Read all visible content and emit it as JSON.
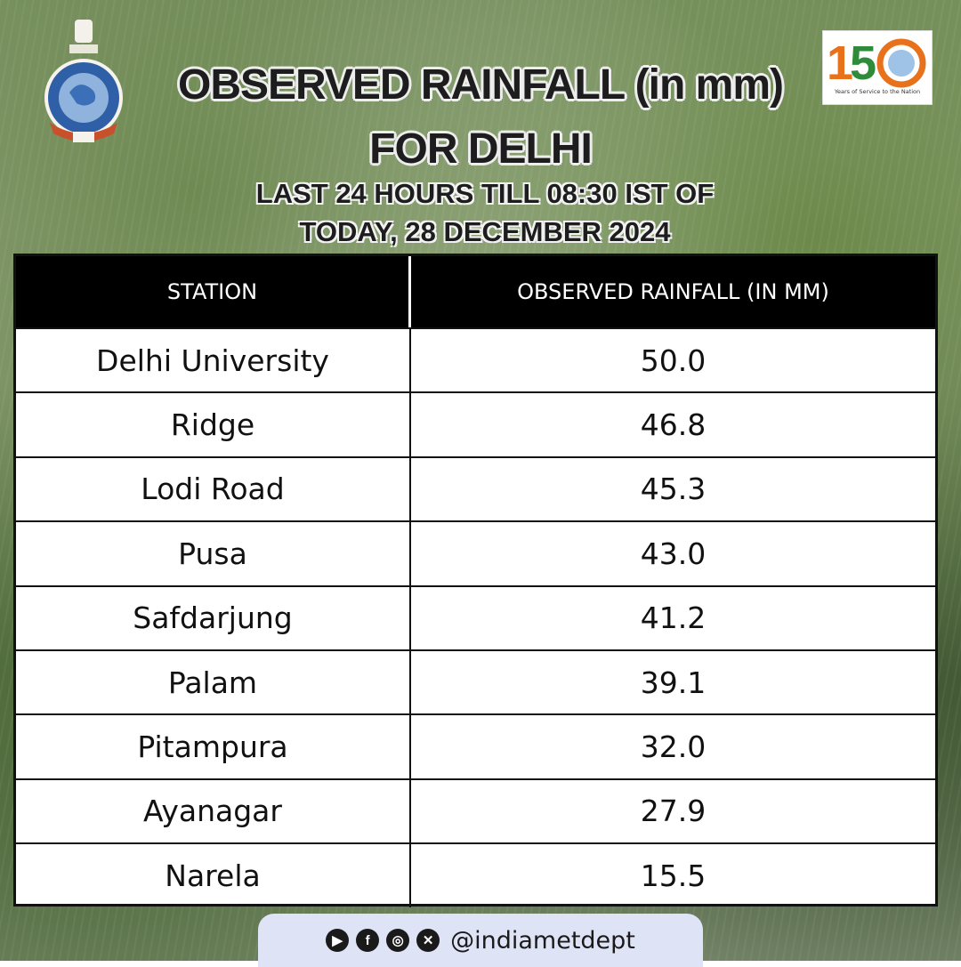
{
  "title": {
    "line1_main": "OBSERVED RAINFALL",
    "line1_unit": "(in mm)",
    "line2": "FOR DELHI",
    "subtitle_line1": "LAST 24 HOURS TILL 08:30 IST OF",
    "subtitle_line2": "TODAY, 28 DECEMBER 2024"
  },
  "logos": {
    "emblem_icon": "imd-emblem-icon",
    "anniversary_number": "150",
    "anniversary_caption": "Years of Service to the Nation"
  },
  "table": {
    "columns": [
      "STATION",
      "OBSERVED RAINFALL (IN MM)"
    ],
    "rows": [
      {
        "station": "Delhi University",
        "rainfall": "50.0"
      },
      {
        "station": "Ridge",
        "rainfall": "46.8"
      },
      {
        "station": "Lodi Road",
        "rainfall": "45.3"
      },
      {
        "station": "Pusa",
        "rainfall": "43.0"
      },
      {
        "station": "Safdarjung",
        "rainfall": "41.2"
      },
      {
        "station": "Palam",
        "rainfall": "39.1"
      },
      {
        "station": "Pitampura",
        "rainfall": "32.0"
      },
      {
        "station": "Ayanagar",
        "rainfall": "27.9"
      },
      {
        "station": "Narela",
        "rainfall": "15.5"
      }
    ]
  },
  "footer": {
    "icons": [
      "youtube-icon",
      "facebook-icon",
      "instagram-icon",
      "x-icon"
    ],
    "handle": "@indiametdept"
  },
  "colors": {
    "header_bg": "#000000",
    "footer_bg": "#dfe3f6",
    "accent_orange": "#e8711b",
    "accent_green": "#2e8b3a"
  }
}
